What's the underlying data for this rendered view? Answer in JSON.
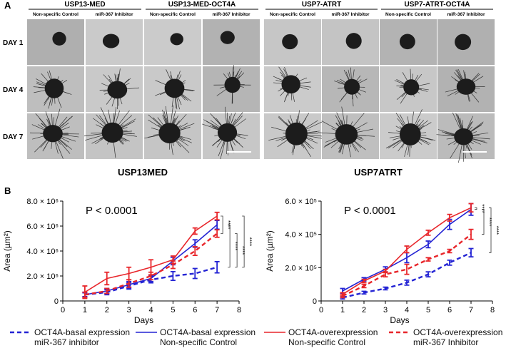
{
  "panel_a": {
    "label": "A",
    "groups": [
      {
        "title": "USP13-MED",
        "columns": [
          "Non-specific Control",
          "miR-367 Inhibitor"
        ]
      },
      {
        "title": "USP13-MED-OCT4A",
        "columns": [
          "Non-specific Control",
          "miR-367 Inhibitor"
        ]
      },
      {
        "title": "USP7-ATRT",
        "columns": [
          "Non-specific Control",
          "miR-367 Inhibitor"
        ]
      },
      {
        "title": "USP7-ATRT-OCT4A",
        "columns": [
          "Non-specific Control",
          "miR-367 Inhibitor"
        ]
      }
    ],
    "rows": [
      "DAY 1",
      "DAY 4",
      "DAY 7"
    ],
    "captions": [
      "USP13MED",
      "USP7ATRT"
    ]
  },
  "panel_b": {
    "label": "B"
  },
  "chart_data": [
    {
      "type": "line",
      "annotation": "P < 0.0001",
      "significance": [
        "****",
        "****",
        "****",
        "****"
      ],
      "x_label": "Days",
      "y_label": "Area (µm²)",
      "x": [
        1,
        2,
        3,
        4,
        5,
        6,
        7
      ],
      "xlim": [
        0,
        8
      ],
      "xticks": [
        0,
        1,
        2,
        3,
        4,
        5,
        6,
        7,
        8
      ],
      "ylim": [
        0,
        8000000
      ],
      "yticks": [
        0,
        {
          "value": 2000000,
          "label": "2.0 × 10⁶"
        },
        {
          "value": 4000000,
          "label": "4.0 × 10⁶"
        },
        {
          "value": 6000000,
          "label": "6.0 × 10⁶"
        },
        {
          "value": 8000000,
          "label": "8.0 × 10⁶"
        }
      ],
      "series": [
        {
          "name": "OCT4A-basal expression miR-367 inhibitor",
          "color": "#2424d4",
          "style": "dashed",
          "values": [
            500000,
            700000,
            1200000,
            1700000,
            2000000,
            2200000,
            2700000
          ],
          "errors": [
            150000,
            200000,
            250000,
            250000,
            350000,
            400000,
            450000
          ]
        },
        {
          "name": "OCT4A-basal expression Non-specific Control",
          "color": "#2424d4",
          "style": "solid",
          "values": [
            500000,
            800000,
            1300000,
            1800000,
            3200000,
            4600000,
            6100000
          ],
          "errors": [
            200000,
            200000,
            250000,
            250000,
            300000,
            300000,
            350000
          ]
        },
        {
          "name": "OCT4A-overexpression Non-specific Control",
          "color": "#e8262b",
          "style": "solid",
          "values": [
            700000,
            1800000,
            2200000,
            2700000,
            3300000,
            5600000,
            6800000
          ],
          "errors": [
            500000,
            500000,
            500000,
            600000,
            300000,
            250000,
            300000
          ]
        },
        {
          "name": "OCT4A-overexpression miR-367 Inhibitor",
          "color": "#e8262b",
          "style": "dashed",
          "values": [
            500000,
            800000,
            1400000,
            2000000,
            2900000,
            4000000,
            5400000
          ],
          "errors": [
            200000,
            200000,
            300000,
            300000,
            300000,
            350000,
            300000
          ]
        }
      ]
    },
    {
      "type": "line",
      "annotation": "P < 0.0001",
      "significance": [
        "****",
        "****",
        "****"
      ],
      "x_label": "Days",
      "y_label": "Area (µm²)",
      "x": [
        1,
        2,
        3,
        4,
        5,
        6,
        7
      ],
      "xlim": [
        0,
        8
      ],
      "xticks": [
        0,
        1,
        2,
        3,
        4,
        5,
        6,
        7,
        8
      ],
      "ylim": [
        0,
        600000
      ],
      "yticks": [
        0,
        {
          "value": 200000,
          "label": "2.0 × 10⁵"
        },
        {
          "value": 400000,
          "label": "4.0 × 10⁵"
        },
        {
          "value": 600000,
          "label": "6.0 × 10⁵"
        }
      ],
      "series": [
        {
          "name": "OCT4A-basal expression miR-367 inhibitor",
          "color": "#2424d4",
          "style": "dashed",
          "values": [
            20000,
            50000,
            75000,
            110000,
            160000,
            230000,
            290000
          ],
          "errors": [
            8000,
            8000,
            8000,
            15000,
            15000,
            15000,
            25000
          ]
        },
        {
          "name": "OCT4A-basal expression Non-specific Control",
          "color": "#2424d4",
          "style": "solid",
          "values": [
            60000,
            130000,
            190000,
            260000,
            340000,
            460000,
            550000
          ],
          "errors": [
            15000,
            10000,
            15000,
            30000,
            20000,
            30000,
            35000
          ]
        },
        {
          "name": "OCT4A-overexpression Non-specific Control",
          "color": "#e8262b",
          "style": "solid",
          "values": [
            40000,
            120000,
            180000,
            310000,
            410000,
            500000,
            560000
          ],
          "errors": [
            10000,
            10000,
            10000,
            20000,
            15000,
            20000,
            25000
          ]
        },
        {
          "name": "OCT4A-overexpression miR-367 Inhibitor",
          "color": "#e8262b",
          "style": "dashed",
          "values": [
            30000,
            90000,
            160000,
            190000,
            250000,
            300000,
            400000
          ],
          "errors": [
            10000,
            10000,
            15000,
            30000,
            10000,
            10000,
            30000
          ]
        }
      ]
    }
  ]
}
